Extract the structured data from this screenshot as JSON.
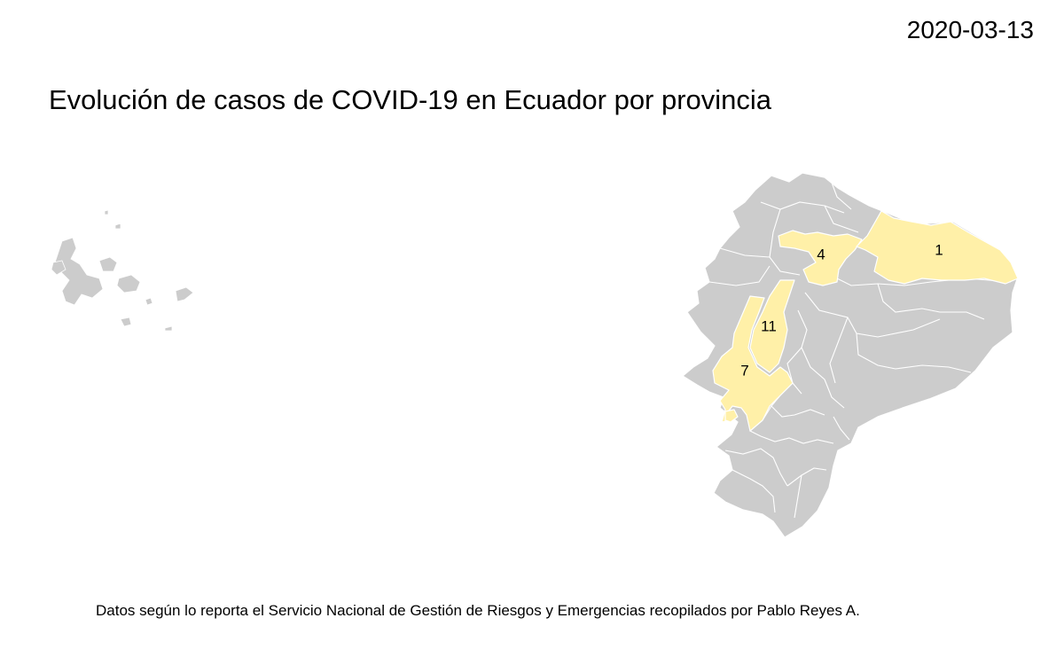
{
  "date": "2020-03-13",
  "title": "Evolución de casos de COVID-19 en Ecuador por provincia",
  "caption": "Datos según lo reporta el Servicio Nacional de Gestión de Riesgos y Emergencias recopilados por Pablo Reyes A.",
  "colors": {
    "no_cases": "#cccccc",
    "with_cases": "#fff0a8",
    "border": "#ffffff",
    "background": "#ffffff"
  },
  "provinces_with_cases": [
    {
      "id": "pichincha",
      "label": "4"
    },
    {
      "id": "sucumbios",
      "label": "1"
    },
    {
      "id": "los-rios",
      "label": "11"
    },
    {
      "id": "guayas",
      "label": "7"
    }
  ]
}
